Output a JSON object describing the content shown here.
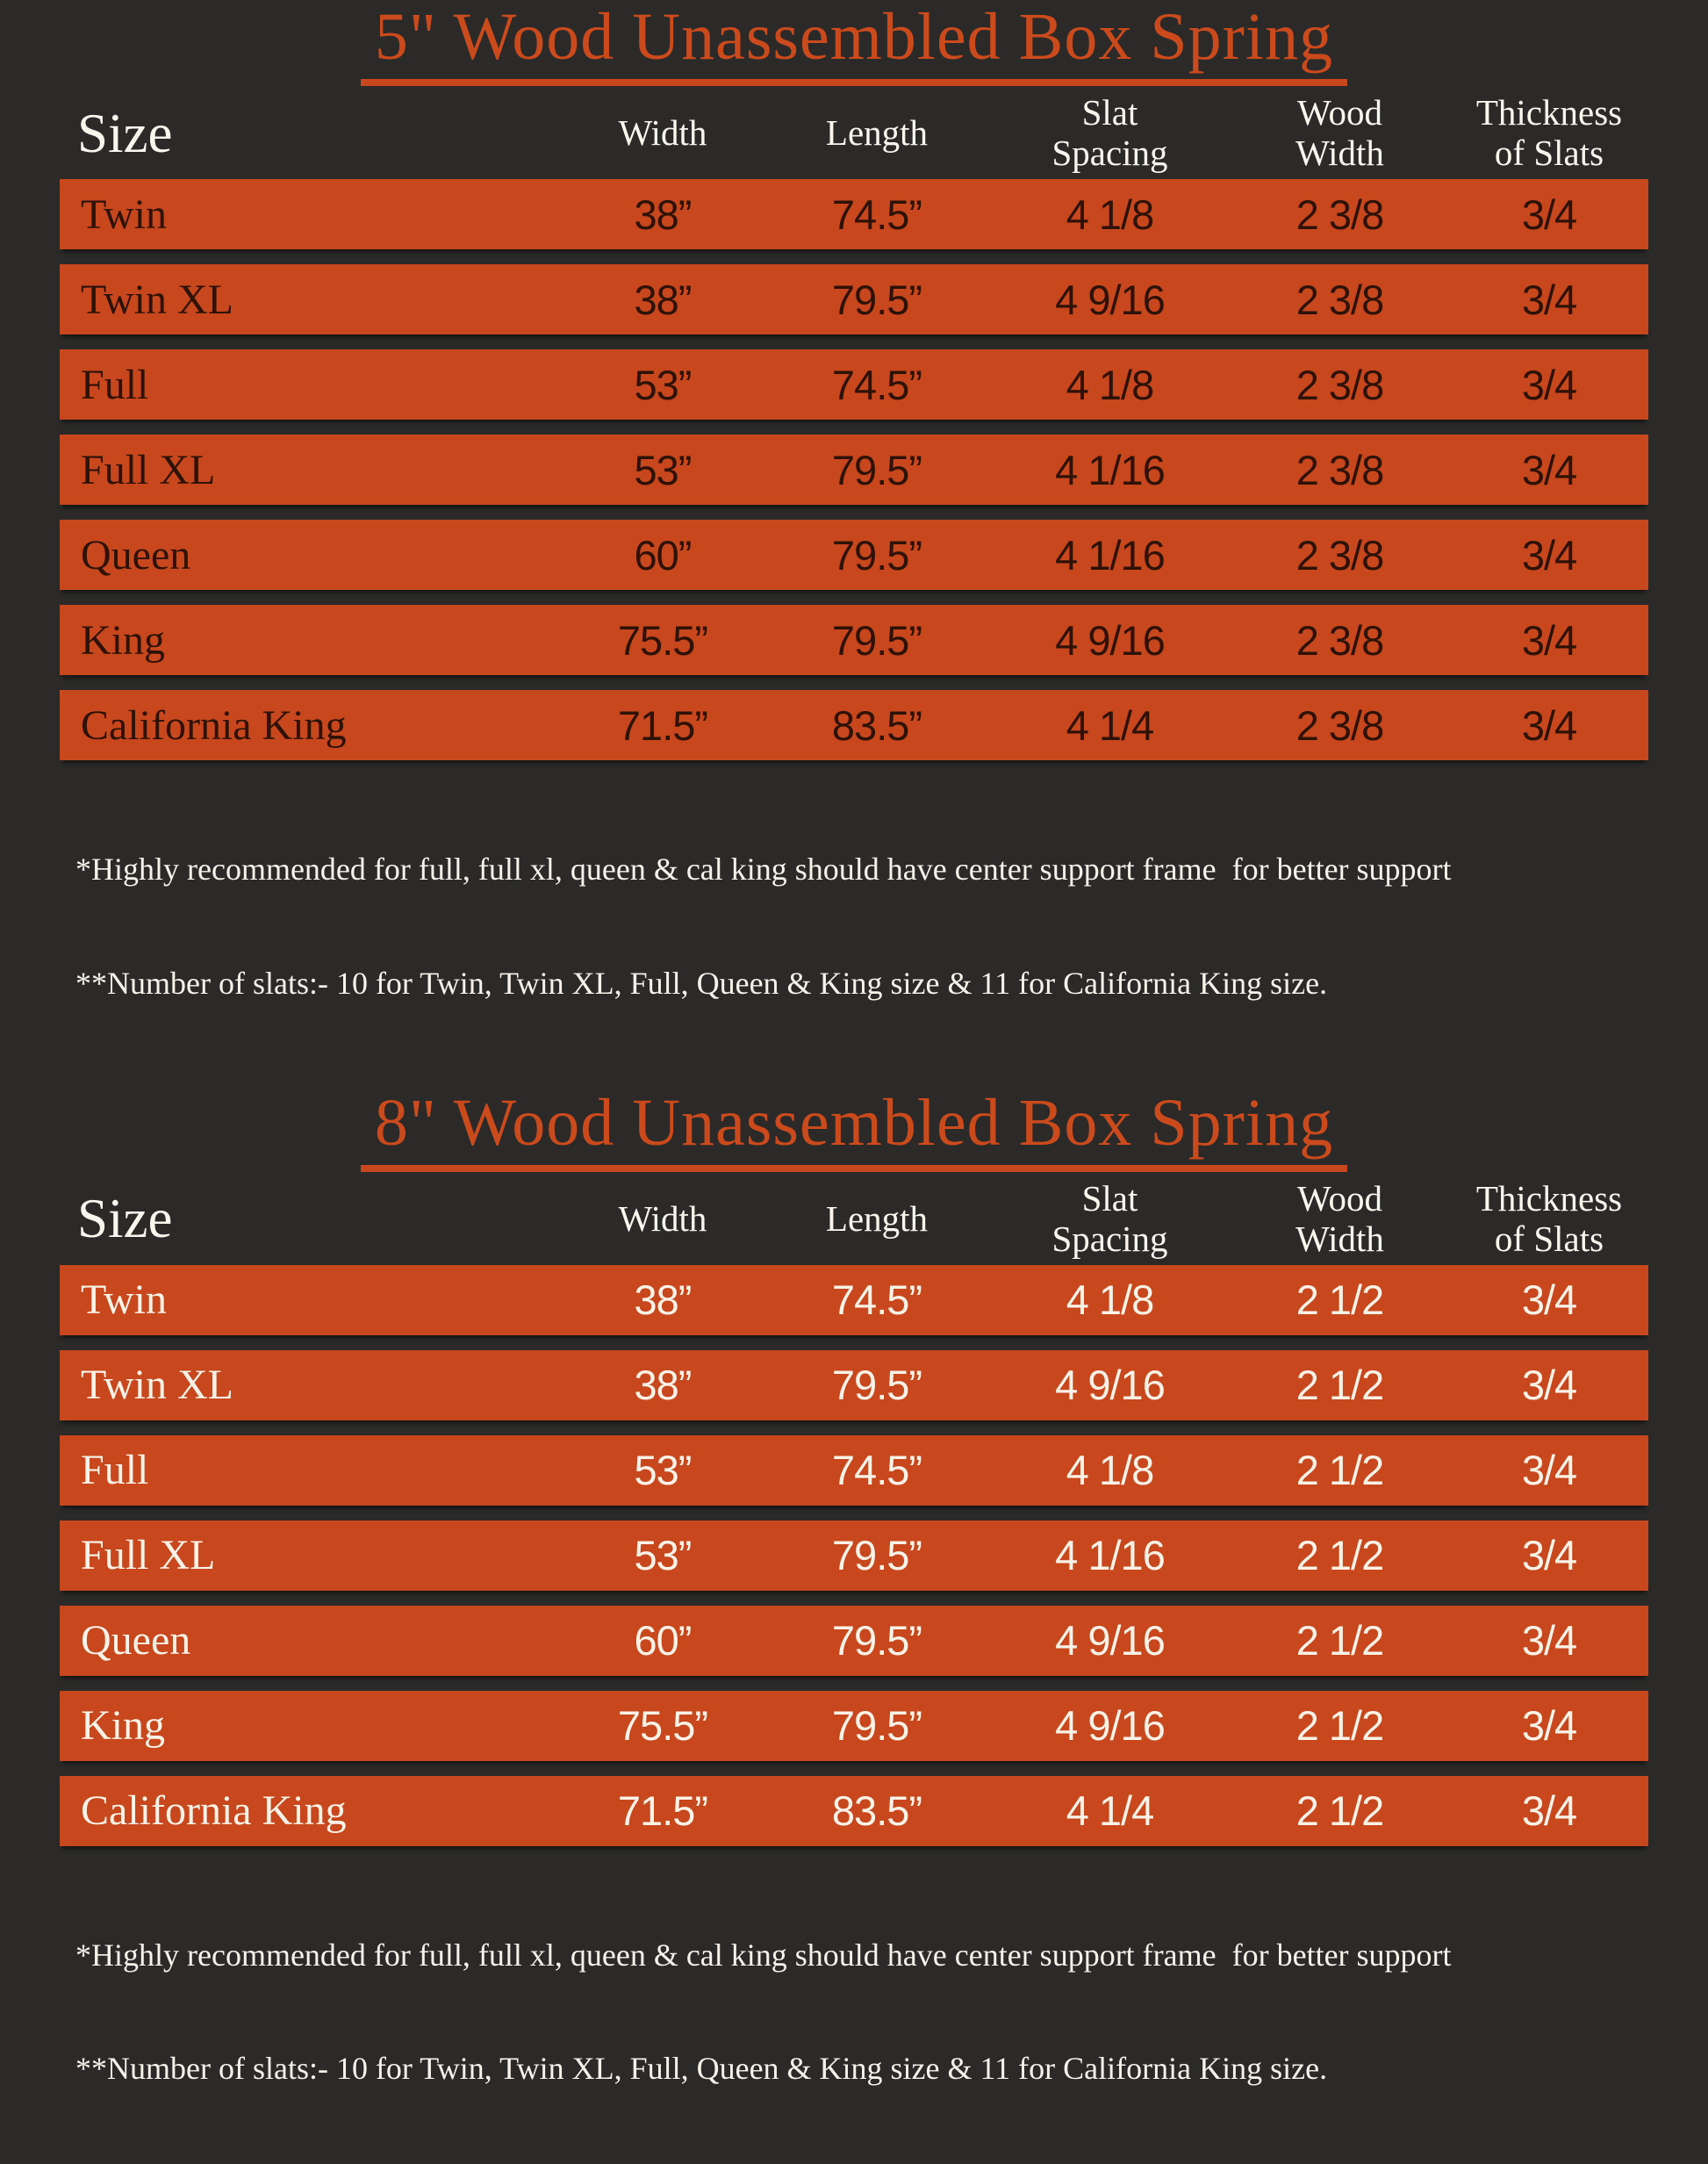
{
  "colors": {
    "background": "#2b2a29",
    "title_accent": "#cb4a1c",
    "row_accent": "#c8471d",
    "table1_text": "#2e1206",
    "table2_text": "#faf3e8",
    "header_text": "#fbf7ef"
  },
  "columns": [
    "Size",
    "Width",
    "Length",
    "Slat\nSpacing",
    "Wood\nWidth",
    "Thickness\nof Slats"
  ],
  "sections": [
    {
      "title": "5\" Wood Unassembled Box Spring",
      "rows": [
        [
          "Twin",
          "38”",
          "74.5”",
          "4 1/8",
          "2 3/8",
          "3/4"
        ],
        [
          "Twin XL",
          "38”",
          "79.5”",
          "4 9/16",
          "2 3/8",
          "3/4"
        ],
        [
          "Full",
          "53”",
          "74.5”",
          "4 1/8",
          "2 3/8",
          "3/4"
        ],
        [
          "Full XL",
          "53”",
          "79.5”",
          "4 1/16",
          "2 3/8",
          "3/4"
        ],
        [
          "Queen",
          "60”",
          "79.5”",
          "4 1/16",
          "2 3/8",
          "3/4"
        ],
        [
          "King",
          "75.5”",
          "79.5”",
          "4 9/16",
          "2 3/8",
          "3/4"
        ],
        [
          "California King",
          "71.5”",
          "83.5”",
          "4 1/4",
          "2 3/8",
          "3/4"
        ]
      ],
      "footnotes": [
        "*Highly recommended for full, full xl, queen & cal king should have center support frame  for better support",
        "**Number of slats:- 10 for Twin, Twin XL, Full, Queen & King size & 11 for California King size."
      ]
    },
    {
      "title": "8\" Wood Unassembled Box Spring",
      "rows": [
        [
          "Twin",
          "38”",
          "74.5”",
          "4 1/8",
          "2 1/2",
          "3/4"
        ],
        [
          "Twin XL",
          "38”",
          "79.5”",
          "4 9/16",
          "2 1/2",
          "3/4"
        ],
        [
          "Full",
          "53”",
          "74.5”",
          "4 1/8",
          "2 1/2",
          "3/4"
        ],
        [
          "Full XL",
          "53”",
          "79.5”",
          "4 1/16",
          "2 1/2",
          "3/4"
        ],
        [
          "Queen",
          "60”",
          "79.5”",
          "4 9/16",
          "2 1/2",
          "3/4"
        ],
        [
          "King",
          "75.5”",
          "79.5”",
          "4 9/16",
          "2 1/2",
          "3/4"
        ],
        [
          "California King",
          "71.5”",
          "83.5”",
          "4 1/4",
          "2 1/2",
          "3/4"
        ]
      ],
      "footnotes": [
        "*Highly recommended for full, full xl, queen & cal king should have center support frame  for better support",
        "**Number of slats:- 10 for Twin, Twin XL, Full, Queen & King size & 11 for California King size."
      ]
    }
  ],
  "chart_data": [
    {
      "type": "table",
      "title": "5\" Wood Unassembled Box Spring",
      "columns": [
        "Size",
        "Width",
        "Length",
        "Slat Spacing",
        "Wood Width",
        "Thickness of Slats"
      ],
      "rows": [
        [
          "Twin",
          "38\"",
          "74.5\"",
          "4 1/8",
          "2 3/8",
          "3/4"
        ],
        [
          "Twin XL",
          "38\"",
          "79.5\"",
          "4 9/16",
          "2 3/8",
          "3/4"
        ],
        [
          "Full",
          "53\"",
          "74.5\"",
          "4 1/8",
          "2 3/8",
          "3/4"
        ],
        [
          "Full XL",
          "53\"",
          "79.5\"",
          "4 1/16",
          "2 3/8",
          "3/4"
        ],
        [
          "Queen",
          "60\"",
          "79.5\"",
          "4 1/16",
          "2 3/8",
          "3/4"
        ],
        [
          "King",
          "75.5\"",
          "79.5\"",
          "4 9/16",
          "2 3/8",
          "3/4"
        ],
        [
          "California King",
          "71.5\"",
          "83.5\"",
          "4 1/4",
          "2 3/8",
          "3/4"
        ]
      ],
      "footnotes": [
        "*Highly recommended for full, full xl, queen & cal king should have center support frame  for better support",
        "**Number of slats:- 10 for Twin, Twin XL, Full, Queen & King size & 11 for California King size."
      ]
    },
    {
      "type": "table",
      "title": "8\" Wood Unassembled Box Spring",
      "columns": [
        "Size",
        "Width",
        "Length",
        "Slat Spacing",
        "Wood Width",
        "Thickness of Slats"
      ],
      "rows": [
        [
          "Twin",
          "38\"",
          "74.5\"",
          "4 1/8",
          "2 1/2",
          "3/4"
        ],
        [
          "Twin XL",
          "38\"",
          "79.5\"",
          "4 9/16",
          "2 1/2",
          "3/4"
        ],
        [
          "Full",
          "53\"",
          "74.5\"",
          "4 1/8",
          "2 1/2",
          "3/4"
        ],
        [
          "Full XL",
          "53\"",
          "79.5\"",
          "4 1/16",
          "2 1/2",
          "3/4"
        ],
        [
          "Queen",
          "60\"",
          "79.5\"",
          "4 9/16",
          "2 1/2",
          "3/4"
        ],
        [
          "King",
          "75.5\"",
          "79.5\"",
          "4 9/16",
          "2 1/2",
          "3/4"
        ],
        [
          "California King",
          "71.5\"",
          "83.5\"",
          "4 1/4",
          "2 1/2",
          "3/4"
        ]
      ],
      "footnotes": [
        "*Highly recommended for full, full xl, queen & cal king should have center support frame  for better support",
        "**Number of slats:- 10 for Twin, Twin XL, Full, Queen & King size & 11 for California King size."
      ]
    }
  ]
}
